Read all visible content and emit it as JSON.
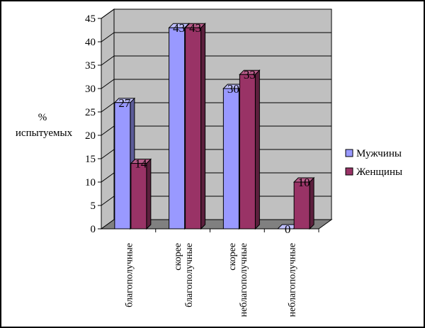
{
  "chart_data": {
    "type": "bar",
    "title": "",
    "ylabel": [
      "%",
      "испытуемых"
    ],
    "xlabel": "",
    "ylim": [
      0,
      45
    ],
    "ytick_step": 5,
    "grid": true,
    "legend_position": "right",
    "categories": [
      [
        "благополучные"
      ],
      [
        "скорее",
        "благополучные"
      ],
      [
        "скорее",
        "неблагополучные"
      ],
      [
        "неблагополучные"
      ]
    ],
    "series": [
      {
        "name": "Мужчины",
        "values": [
          27,
          43,
          30,
          0
        ],
        "color": "#9999ff",
        "side": "#5c5c99",
        "top": "#c0c0ff"
      },
      {
        "name": "Женщины",
        "values": [
          14,
          43,
          33,
          10
        ],
        "color": "#993366",
        "side": "#5c1f3d",
        "top": "#b85c8a"
      }
    ],
    "colors": {
      "wall": "#c0c0c0",
      "floor": "#808080",
      "grid": "#000000"
    }
  }
}
